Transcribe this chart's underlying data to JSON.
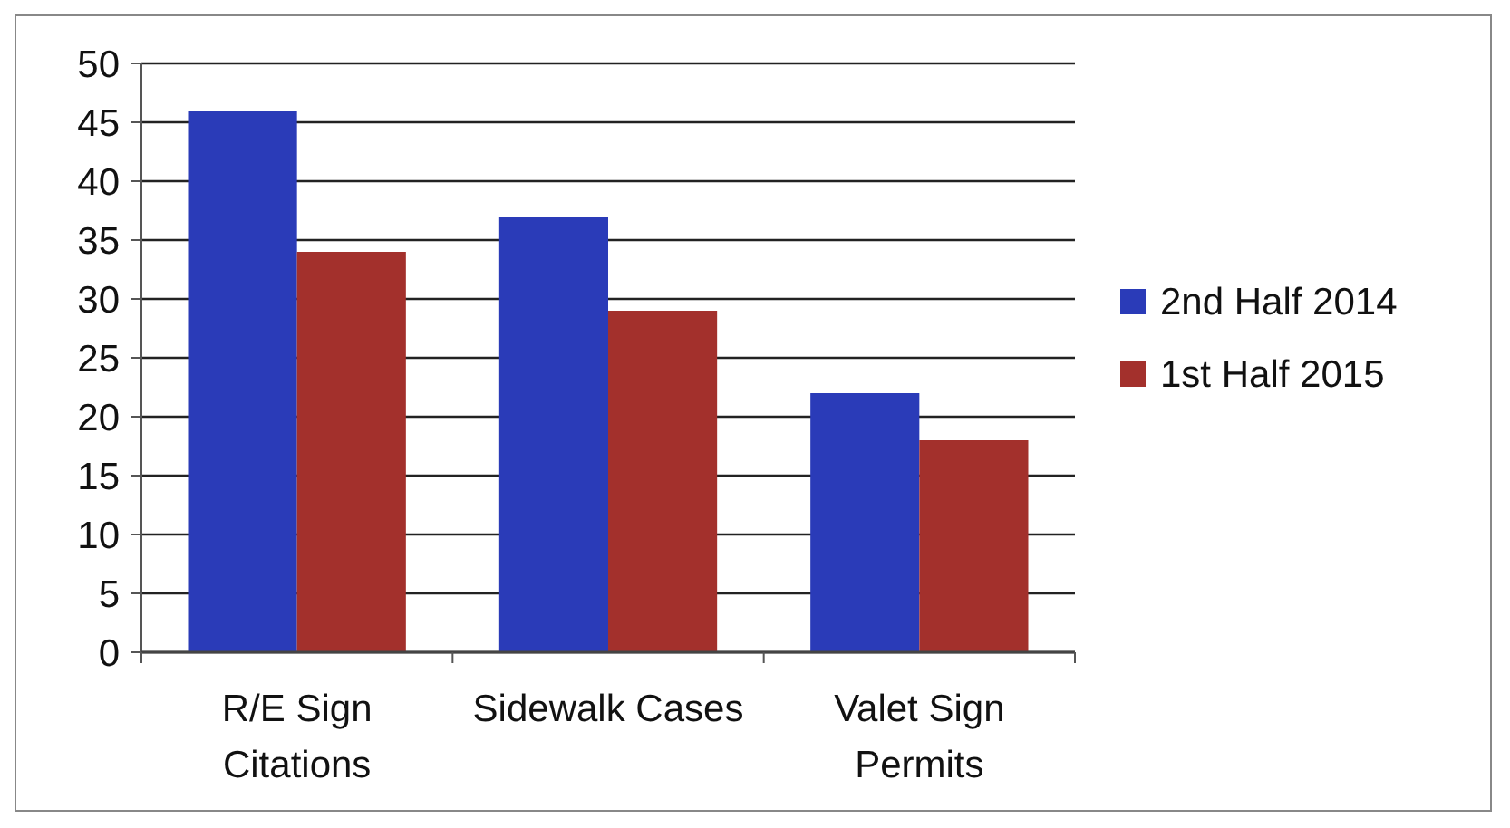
{
  "chart_data": {
    "type": "bar",
    "categories": [
      "R/E Sign Citations",
      "Sidewalk Cases",
      "Valet Sign Permits"
    ],
    "series": [
      {
        "name": "2nd Half 2014",
        "color": "#2a3bb8",
        "values": [
          46,
          37,
          22
        ]
      },
      {
        "name": "1st Half 2015",
        "color": "#a3302c",
        "values": [
          34,
          29,
          18
        ]
      }
    ],
    "ylim": [
      0,
      50
    ],
    "yticks": [
      0,
      5,
      10,
      15,
      20,
      25,
      30,
      35,
      40,
      45,
      50
    ],
    "grid": "y",
    "legend": "right"
  }
}
